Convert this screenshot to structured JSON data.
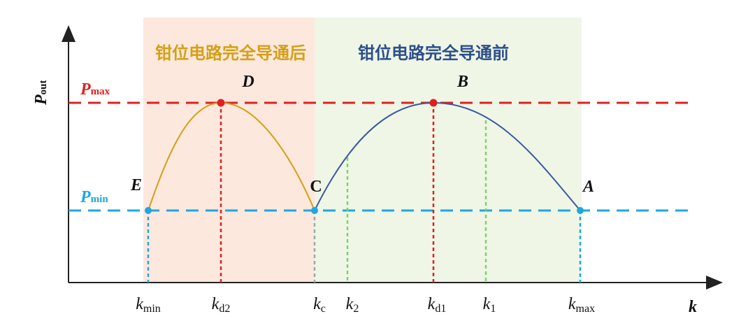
{
  "regions": {
    "after": "钳位电路完全导通后",
    "before": "钳位电路完全导通前"
  },
  "axes": {
    "y": {
      "main": "P",
      "sub": "out"
    },
    "x": "k"
  },
  "levels": {
    "max": {
      "main": "P",
      "sub": "max"
    },
    "min": {
      "main": "P",
      "sub": "min"
    }
  },
  "points": {
    "D": "D",
    "B": "B",
    "E": "E",
    "C": "C",
    "A": "A"
  },
  "ticks": [
    {
      "main": "k",
      "sub": "min"
    },
    {
      "main": "k",
      "sub": "d2"
    },
    {
      "main": "k",
      "sub": "c"
    },
    {
      "main": "k",
      "sub": "2"
    },
    {
      "main": "k",
      "sub": "d1"
    },
    {
      "main": "k",
      "sub": "1"
    },
    {
      "main": "k",
      "sub": "max"
    }
  ]
}
